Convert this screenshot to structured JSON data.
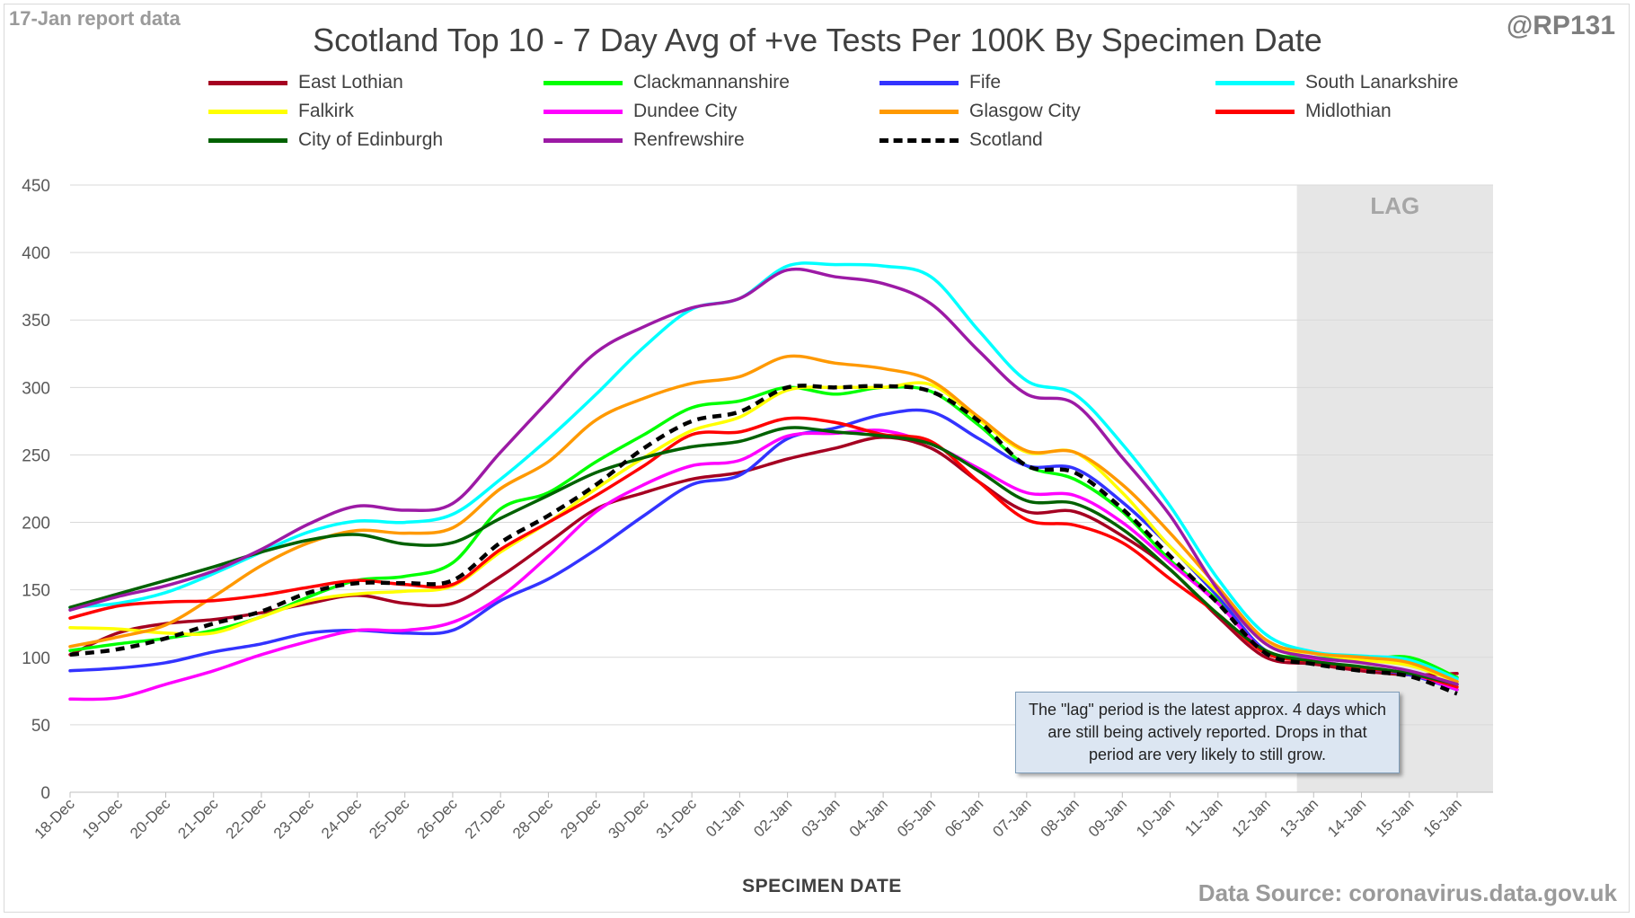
{
  "header": {
    "report_note": "17-Jan report data",
    "handle": "@RP131",
    "source": "Data Source: coronavirus.data.gov.uk"
  },
  "lag_note": "The \"lag\" period is the latest approx. 4 days which are still being actively reported. Drops in that period are very likely to still grow.",
  "chart_data": {
    "type": "line",
    "title": "Scotland Top 10 - 7 Day Avg of +ve Tests Per 100K By Specimen Date",
    "xlabel": "SPECIMEN DATE",
    "ylabel": "",
    "ylim": [
      0,
      450
    ],
    "yticks": [
      0,
      50,
      100,
      150,
      200,
      250,
      300,
      350,
      400,
      450
    ],
    "grid": true,
    "legend_position": "top",
    "shaded_region": {
      "label": "LAG",
      "from": "13-Jan",
      "to": "16-Jan"
    },
    "categories": [
      "18-Dec",
      "19-Dec",
      "20-Dec",
      "21-Dec",
      "22-Dec",
      "23-Dec",
      "24-Dec",
      "25-Dec",
      "26-Dec",
      "27-Dec",
      "28-Dec",
      "29-Dec",
      "30-Dec",
      "31-Dec",
      "01-Jan",
      "02-Jan",
      "03-Jan",
      "04-Jan",
      "05-Jan",
      "06-Jan",
      "07-Jan",
      "08-Jan",
      "09-Jan",
      "10-Jan",
      "11-Jan",
      "12-Jan",
      "13-Jan",
      "14-Jan",
      "15-Jan",
      "16-Jan"
    ],
    "series": [
      {
        "name": "East Lothian",
        "color": "#a50021",
        "dashed": false,
        "values": [
          102,
          118,
          125,
          128,
          133,
          140,
          146,
          140,
          140,
          160,
          185,
          210,
          222,
          232,
          237,
          247,
          255,
          263,
          255,
          230,
          208,
          208,
          190,
          165,
          130,
          100,
          95,
          90,
          87,
          88
        ]
      },
      {
        "name": "Clackmannanshire",
        "color": "#00ff00",
        "dashed": false,
        "values": [
          105,
          110,
          114,
          120,
          130,
          145,
          157,
          160,
          170,
          210,
          222,
          245,
          265,
          285,
          290,
          300,
          295,
          300,
          297,
          272,
          242,
          232,
          208,
          172,
          142,
          105,
          100,
          98,
          100,
          85
        ]
      },
      {
        "name": "Fife",
        "color": "#3333ff",
        "dashed": false,
        "values": [
          90,
          92,
          96,
          104,
          110,
          118,
          120,
          118,
          120,
          142,
          158,
          180,
          205,
          228,
          235,
          262,
          270,
          280,
          282,
          262,
          242,
          240,
          215,
          182,
          145,
          105,
          98,
          92,
          87,
          76
        ]
      },
      {
        "name": "South Lanarkshire",
        "color": "#00ffff",
        "dashed": false,
        "values": [
          137,
          140,
          148,
          162,
          178,
          193,
          201,
          200,
          206,
          232,
          262,
          295,
          330,
          358,
          366,
          390,
          391,
          390,
          382,
          342,
          305,
          295,
          258,
          212,
          158,
          117,
          104,
          101,
          98,
          84
        ]
      },
      {
        "name": "Falkirk",
        "color": "#ffff00",
        "dashed": false,
        "values": [
          122,
          121,
          118,
          118,
          130,
          142,
          147,
          149,
          153,
          178,
          200,
          225,
          248,
          268,
          278,
          298,
          300,
          300,
          302,
          276,
          252,
          252,
          222,
          182,
          148,
          110,
          103,
          98,
          94,
          82
        ]
      },
      {
        "name": "Dundee City",
        "color": "#ff00ff",
        "dashed": false,
        "values": [
          69,
          70,
          80,
          90,
          102,
          112,
          120,
          120,
          126,
          145,
          175,
          208,
          228,
          242,
          246,
          264,
          266,
          268,
          258,
          240,
          222,
          220,
          200,
          170,
          140,
          104,
          98,
          92,
          88,
          76
        ]
      },
      {
        "name": "Glasgow City",
        "color": "#ff9900",
        "dashed": false,
        "values": [
          108,
          115,
          124,
          145,
          168,
          185,
          194,
          192,
          196,
          225,
          245,
          276,
          292,
          303,
          308,
          323,
          318,
          314,
          305,
          278,
          253,
          252,
          228,
          192,
          152,
          113,
          103,
          100,
          96,
          82
        ]
      },
      {
        "name": "Midlothian",
        "color": "#ff0000",
        "dashed": false,
        "values": [
          129,
          138,
          141,
          142,
          146,
          152,
          157,
          154,
          154,
          180,
          200,
          220,
          242,
          265,
          267,
          277,
          274,
          265,
          260,
          230,
          202,
          198,
          185,
          158,
          132,
          103,
          97,
          92,
          88,
          78
        ]
      },
      {
        "name": "City of Edinburgh",
        "color": "#006100",
        "dashed": false,
        "values": [
          137,
          147,
          157,
          167,
          178,
          187,
          191,
          184,
          185,
          203,
          220,
          237,
          248,
          256,
          260,
          270,
          267,
          264,
          258,
          238,
          216,
          214,
          195,
          165,
          132,
          105,
          97,
          93,
          88,
          80
        ]
      },
      {
        "name": "Renfrewshire",
        "color": "#9c1aa5",
        "dashed": false,
        "values": [
          135,
          145,
          153,
          164,
          180,
          199,
          212,
          209,
          214,
          252,
          290,
          326,
          345,
          359,
          366,
          387,
          382,
          377,
          362,
          327,
          295,
          288,
          248,
          205,
          150,
          110,
          100,
          96,
          90,
          80
        ]
      },
      {
        "name": "Scotland",
        "color": "#000000",
        "dashed": true,
        "values": [
          102,
          106,
          114,
          125,
          134,
          148,
          155,
          155,
          157,
          185,
          205,
          228,
          255,
          275,
          282,
          300,
          300,
          301,
          297,
          275,
          242,
          237,
          210,
          175,
          140,
          103,
          95,
          90,
          86,
          73
        ]
      }
    ]
  }
}
